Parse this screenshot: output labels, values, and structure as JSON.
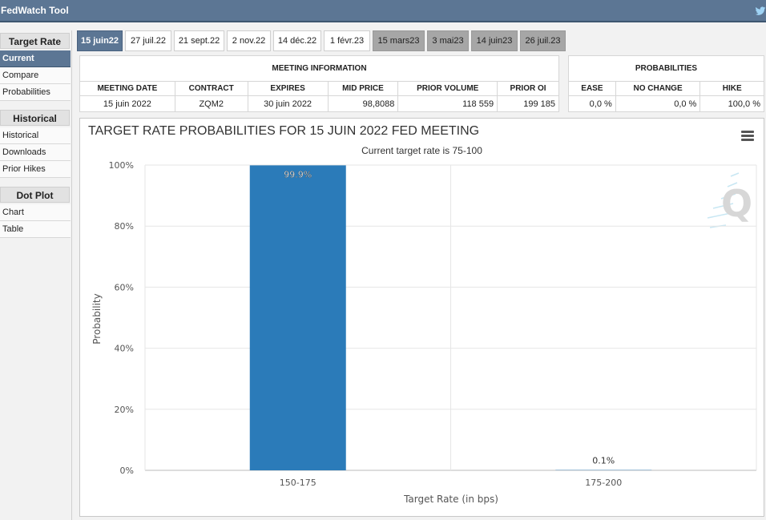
{
  "app": {
    "title": "FedWatch Tool"
  },
  "sidebar": {
    "sections": [
      {
        "header": "Target Rate",
        "items": [
          "Current",
          "Compare",
          "Probabilities"
        ]
      },
      {
        "header": "Historical",
        "items": [
          "Historical",
          "Downloads",
          "Prior Hikes"
        ]
      },
      {
        "header": "Dot Plot",
        "items": [
          "Chart",
          "Table"
        ]
      }
    ],
    "active_item": "Current"
  },
  "tabs": [
    {
      "label": "15 juin22",
      "state": "active"
    },
    {
      "label": "27 juil.22",
      "state": "normal"
    },
    {
      "label": "21 sept.22",
      "state": "normal"
    },
    {
      "label": "2 nov.22",
      "state": "normal"
    },
    {
      "label": "14 déc.22",
      "state": "normal"
    },
    {
      "label": "1 févr.23",
      "state": "normal"
    },
    {
      "label": "15 mars23",
      "state": "grey"
    },
    {
      "label": "3 mai23",
      "state": "grey"
    },
    {
      "label": "14 juin23",
      "state": "grey"
    },
    {
      "label": "26 juil.23",
      "state": "grey"
    }
  ],
  "meeting_info": {
    "header": "MEETING INFORMATION",
    "columns": [
      "MEETING DATE",
      "CONTRACT",
      "EXPIRES",
      "MID PRICE",
      "PRIOR VOLUME",
      "PRIOR OI"
    ],
    "row": [
      "15 juin 2022",
      "ZQM2",
      "30 juin 2022",
      "98,8088",
      "118 559",
      "199 185"
    ]
  },
  "probabilities": {
    "header": "PROBABILITIES",
    "columns": [
      "EASE",
      "NO CHANGE",
      "HIKE"
    ],
    "row": [
      "0,0 %",
      "0,0 %",
      "100,0 %"
    ]
  },
  "chart_data": {
    "type": "bar",
    "title": "TARGET RATE PROBABILITIES FOR 15 JUIN 2022 FED MEETING",
    "subtitle": "Current target rate is 75-100",
    "xlabel": "Target Rate (in bps)",
    "ylabel": "Probability",
    "categories": [
      "150-175",
      "175-200"
    ],
    "values": [
      99.9,
      0.1
    ],
    "data_labels": [
      "99.9%",
      "0.1%"
    ],
    "y_ticks": [
      "0%",
      "20%",
      "40%",
      "60%",
      "80%",
      "100%"
    ],
    "ylim": [
      0,
      100
    ],
    "grid": true,
    "legend": "none",
    "bar_color": "#2b7bb9"
  },
  "colors": {
    "accent": "#5c7694",
    "bar": "#2b7bb9",
    "tab_grey": "#a6a6a6"
  }
}
